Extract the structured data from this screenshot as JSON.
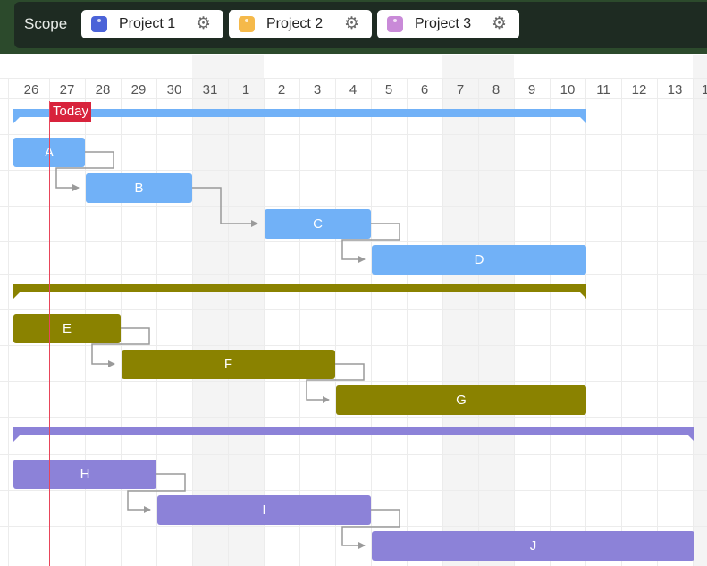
{
  "header": {
    "scope_label": "Scope",
    "projects": [
      {
        "label": "Project 1",
        "color": "#4b63d8"
      },
      {
        "label": "Project 2",
        "color": "#f5b94a"
      },
      {
        "label": "Project 3",
        "color": "#c98ad8"
      }
    ]
  },
  "timeline": {
    "days": [
      "26",
      "27",
      "28",
      "29",
      "30",
      "31",
      "1",
      "2",
      "3",
      "4",
      "5",
      "6",
      "7",
      "8",
      "9",
      "10",
      "11",
      "12",
      "13",
      "1"
    ],
    "today_label": "Today"
  },
  "colors": {
    "blue": "#71b1f7",
    "olive": "#8a8200",
    "purple": "#8c82d8"
  },
  "tasks": [
    {
      "label": "A"
    },
    {
      "label": "B"
    },
    {
      "label": "C"
    },
    {
      "label": "D"
    },
    {
      "label": "E"
    },
    {
      "label": "F"
    },
    {
      "label": "G"
    },
    {
      "label": "H"
    },
    {
      "label": "I"
    },
    {
      "label": "J"
    }
  ]
}
